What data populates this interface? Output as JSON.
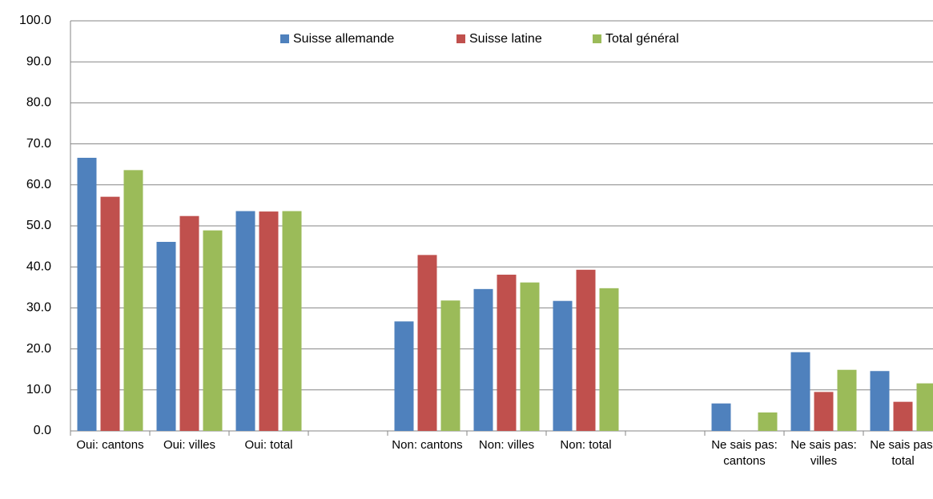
{
  "chart_data": {
    "type": "bar",
    "categories": [
      "Oui: cantons",
      "Oui: villes",
      "Oui: total",
      null,
      "Non: cantons",
      "Non: villes",
      "Non: total",
      null,
      "Ne sais pas: cantons",
      "Ne sais pas: villes",
      "Ne sais pas: total"
    ],
    "series": [
      {
        "name": "Suisse allemande",
        "color": "#4f81bd",
        "values": [
          66.6,
          46.1,
          53.6,
          null,
          26.7,
          34.6,
          31.7,
          null,
          6.7,
          19.2,
          14.6
        ]
      },
      {
        "name": "Suisse latine",
        "color": "#c0504d",
        "values": [
          57.1,
          52.4,
          53.5,
          null,
          42.9,
          38.1,
          39.3,
          null,
          0,
          9.5,
          7.1
        ]
      },
      {
        "name": "Total général",
        "color": "#9bbb59",
        "values": [
          63.6,
          48.9,
          53.6,
          null,
          31.8,
          36.2,
          34.8,
          null,
          4.5,
          14.9,
          11.6
        ]
      }
    ],
    "ylim": [
      0,
      100
    ],
    "yticks": [
      {
        "value": 0,
        "label": "0.0"
      },
      {
        "value": 10,
        "label": "10.0"
      },
      {
        "value": 20,
        "label": "20.0"
      },
      {
        "value": 30,
        "label": "30.0"
      },
      {
        "value": 40,
        "label": "40.0"
      },
      {
        "value": 50,
        "label": "50.0"
      },
      {
        "value": 60,
        "label": "60.0"
      },
      {
        "value": 70,
        "label": "70.0"
      },
      {
        "value": 80,
        "label": "80.0"
      },
      {
        "value": 90,
        "label": "90.0"
      },
      {
        "value": 100,
        "label": "100.0"
      }
    ],
    "grid": true,
    "legend": "top"
  }
}
